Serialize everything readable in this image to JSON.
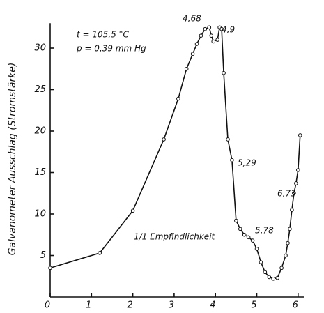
{
  "chart_data": {
    "type": "line",
    "y_label": "Galvanometer Ausschlag (Stromstärke)",
    "annotations": [
      "t = 105,5 °C",
      "p = 0,39 mm Hg",
      "4,68",
      "4,9",
      "5,29",
      "5,78",
      "6,73",
      "1/1 Empfindlichkeit"
    ],
    "x": [
      0,
      1.2,
      2,
      2.75,
      3.1,
      3.3,
      3.45,
      3.55,
      3.65,
      3.75,
      3.85,
      3.9,
      3.95,
      4.05,
      4.1,
      4.15,
      4.2,
      4.3,
      4.4,
      4.5,
      4.6,
      4.7,
      4.8,
      4.9,
      5.0,
      5.1,
      5.2,
      5.3,
      5.4,
      5.5,
      5.6,
      5.7,
      5.75,
      5.8,
      5.85,
      5.9,
      5.95,
      6.0,
      6.05
    ],
    "series": [
      {
        "color": "#111111",
        "values": [
          3.5,
          5.3,
          10.4,
          19,
          23.9,
          27.5,
          29.3,
          30.5,
          31.5,
          32.3,
          32.5,
          31.5,
          30.8,
          31.0,
          32.5,
          32.3,
          27,
          19,
          16.5,
          9.2,
          8.2,
          7.5,
          7.2,
          6.8,
          5.8,
          4.2,
          3.0,
          2.4,
          2.2,
          2.3,
          3.5,
          5.0,
          6.5,
          8.2,
          10.5,
          12.5,
          13.7,
          15.3,
          19.5
        ]
      }
    ],
    "xlim": [
      0,
      6.15
    ],
    "ylim": [
      0,
      33
    ],
    "xticks": [
      0,
      1,
      2,
      3,
      4,
      5,
      6
    ],
    "yticks": [
      5,
      10,
      15,
      20,
      25,
      30
    ],
    "grid": false,
    "markers": true
  }
}
